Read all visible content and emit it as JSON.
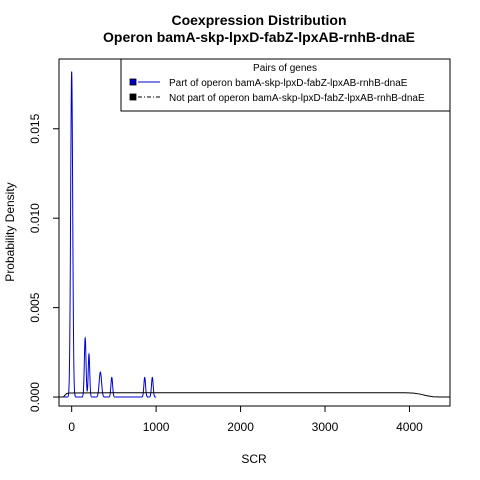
{
  "chart_data": {
    "type": "line",
    "title": "Coexpression Distribution",
    "subtitle": "Operon bamA-skp-lpxD-fabZ-lpxAB-rnhB-dnaE",
    "xlabel": "SCR",
    "ylabel": "Probability Density",
    "xlim": [
      -150,
      4480
    ],
    "ylim": [
      -0.0005,
      0.0189
    ],
    "x_ticks": [
      0,
      1000,
      2000,
      3000,
      4000
    ],
    "x_tick_labels": [
      "0",
      "1000",
      "2000",
      "3000",
      "4000"
    ],
    "y_ticks": [
      0.0,
      0.005,
      0.01,
      0.015
    ],
    "y_tick_labels": [
      "0.000",
      "0.005",
      "0.010",
      "0.015"
    ],
    "grid": false,
    "legend_position": "top-right",
    "legend": {
      "title": "Pairs of genes",
      "entries": [
        {
          "label": "Part of operon bamA-skp-lpxD-fabZ-lpxAB-rnhB-dnaE",
          "color": "#0000cc",
          "line_style": "solid"
        },
        {
          "label": "Not part of operon bamA-skp-lpxD-fabZ-lpxAB-rnhB-dnaE",
          "color": "#000000",
          "line_style": "dashdot"
        }
      ]
    },
    "series": [
      {
        "color": "#0000cc",
        "kind": "peaks",
        "baseline": 0.0,
        "x_range": [
          -120,
          1000
        ],
        "peaks": [
          {
            "x": 0,
            "height": 0.0182,
            "sd": 12
          },
          {
            "x": 160,
            "height": 0.0033,
            "sd": 10
          },
          {
            "x": 205,
            "height": 0.0024,
            "sd": 9
          },
          {
            "x": 340,
            "height": 0.0014,
            "sd": 14
          },
          {
            "x": 475,
            "height": 0.0011,
            "sd": 10
          },
          {
            "x": 865,
            "height": 0.0011,
            "sd": 10
          },
          {
            "x": 955,
            "height": 0.0011,
            "sd": 10
          }
        ]
      },
      {
        "color": "#000000",
        "kind": "points",
        "points": [
          [
            -150,
            0.0
          ],
          [
            -100,
            0.0
          ],
          [
            -60,
            0.0002
          ],
          [
            -20,
            0.00023
          ],
          [
            500,
            0.00024
          ],
          [
            1500,
            0.00024
          ],
          [
            2500,
            0.00024
          ],
          [
            3500,
            0.00024
          ],
          [
            3950,
            0.00024
          ],
          [
            4050,
            0.00022
          ],
          [
            4130,
            0.00016
          ],
          [
            4200,
            8e-05
          ],
          [
            4280,
            2e-05
          ],
          [
            4350,
            0.0
          ],
          [
            4480,
            0.0
          ]
        ]
      }
    ]
  }
}
